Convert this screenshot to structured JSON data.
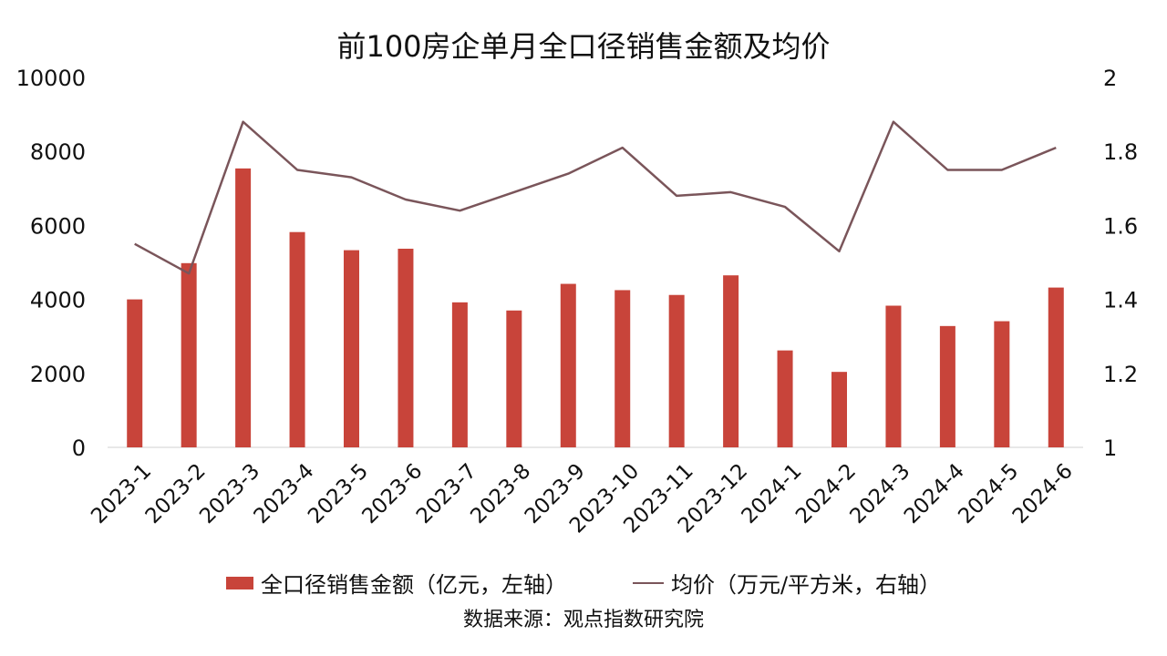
{
  "chart_data": {
    "type": "bar+line",
    "title": "前100房企单月全口径销售金额及均价",
    "source": "数据来源：观点指数研究院",
    "categories": [
      "2023-1",
      "2023-2",
      "2023-3",
      "2023-4",
      "2023-5",
      "2023-6",
      "2023-7",
      "2023-8",
      "2023-9",
      "2023-10",
      "2023-11",
      "2023-12",
      "2024-1",
      "2024-2",
      "2024-3",
      "2024-4",
      "2024-5",
      "2024-6"
    ],
    "series": [
      {
        "name": "全口径销售金额（亿元，左轴）",
        "type": "bar",
        "axis": "left",
        "color": "#c8443a",
        "values": [
          4000,
          4980,
          7540,
          5820,
          5330,
          5370,
          3920,
          3700,
          4420,
          4250,
          4120,
          4650,
          2620,
          2040,
          3830,
          3280,
          3410,
          4320
        ]
      },
      {
        "name": "均价（万元/平方米，右轴）",
        "type": "line",
        "axis": "right",
        "color": "#7a555a",
        "values": [
          1.55,
          1.47,
          1.88,
          1.75,
          1.73,
          1.67,
          1.64,
          1.69,
          1.74,
          1.81,
          1.68,
          1.69,
          1.65,
          1.53,
          1.88,
          1.75,
          1.75,
          1.81
        ]
      }
    ],
    "y_left": {
      "min": 0,
      "max": 10000,
      "ticks": [
        "0",
        "2000",
        "4000",
        "6000",
        "8000",
        "10000"
      ]
    },
    "y_right": {
      "min": 1,
      "max": 2,
      "ticks": [
        "1",
        "1.2",
        "1.4",
        "1.6",
        "1.8",
        "2"
      ]
    },
    "grid": false,
    "legend_position": "bottom"
  }
}
